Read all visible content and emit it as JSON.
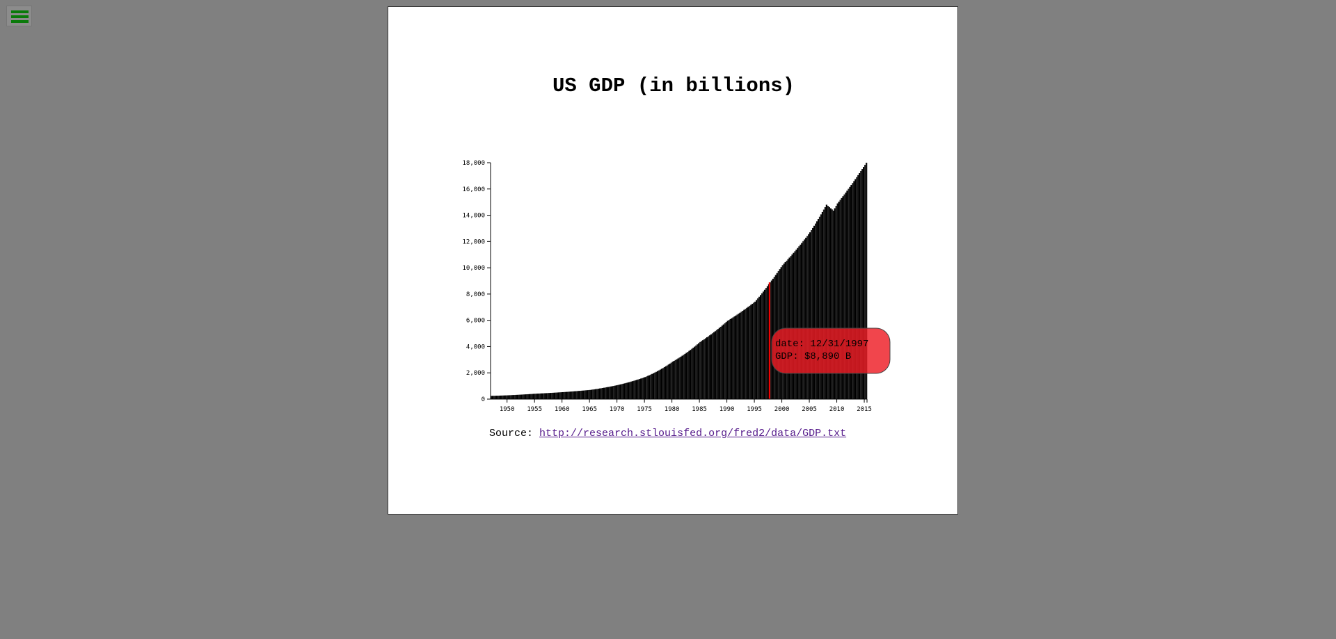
{
  "menu": {
    "icon": "hamburger-menu-icon"
  },
  "colors": {
    "background": "#808080",
    "panel": "#ffffff",
    "bars": "#000000",
    "highlight": "#ff0000",
    "tooltip": "#ee1c24",
    "menu_icon": "#0a7a0a"
  },
  "chart": {
    "title": "US GDP (in billions)",
    "source_label": "Source:",
    "source_link": "http://research.stlouisfed.org/fred2/data/GDP.txt"
  },
  "tooltip": {
    "date_line": "date: 12/31/1997",
    "gdp_line": "GDP: $8,890 B"
  },
  "chart_data": {
    "type": "bar",
    "title": "US GDP (in billions)",
    "xlabel": "",
    "ylabel": "",
    "x_range": [
      1947,
      2015.5
    ],
    "ylim": [
      0,
      18000
    ],
    "x_ticks": [
      "1950",
      "1955",
      "1960",
      "1965",
      "1970",
      "1975",
      "1980",
      "1985",
      "1990",
      "1995",
      "2000",
      "2005",
      "2010",
      "2015"
    ],
    "y_ticks": [
      "0",
      "2,000",
      "4,000",
      "6,000",
      "8,000",
      "10,000",
      "12,000",
      "14,000",
      "16,000",
      "18,000"
    ],
    "frequency": "quarterly",
    "anchors": {
      "year": [
        1947,
        1950,
        1955,
        1960,
        1965,
        1970,
        1975,
        1980,
        1985,
        1990,
        1995,
        1997.75,
        2000,
        2005,
        2008,
        2009.25,
        2010,
        2015.25
      ],
      "gdp": [
        245,
        290,
        410,
        530,
        700,
        1070,
        1680,
        2850,
        4350,
        5960,
        7420,
        8890,
        10200,
        12700,
        14800,
        14350,
        14900,
        18000
      ]
    },
    "highlight": {
      "date": "12/31/1997",
      "gdp": 8890
    },
    "grid": false,
    "legend": "none"
  }
}
